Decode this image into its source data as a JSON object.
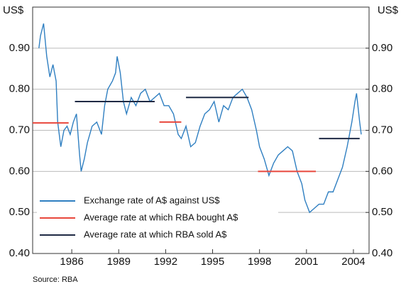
{
  "chart_data": {
    "type": "line",
    "ylabel": "US$",
    "y2label": "US$",
    "source": "Source: RBA",
    "xlim": [
      1983.5,
      2005
    ],
    "xticks": [
      1986,
      1989,
      1992,
      1995,
      1998,
      2001,
      2004
    ],
    "ylim": [
      0.4,
      1.0
    ],
    "yticks": [
      {
        "value": 0.4,
        "label": "0.40"
      },
      {
        "value": 0.5,
        "label": "0.50"
      },
      {
        "value": 0.6,
        "label": "0.60"
      },
      {
        "value": 0.7,
        "label": "0.70"
      },
      {
        "value": 0.8,
        "label": "0.80"
      },
      {
        "value": 0.9,
        "label": "0.90"
      }
    ],
    "y2lim": [
      0.4,
      1.0
    ],
    "y2ticks": [
      {
        "value": 0.4,
        "label": "0.40"
      },
      {
        "value": 0.5,
        "label": "0.50"
      },
      {
        "value": 0.6,
        "label": "0.60"
      },
      {
        "value": 0.7,
        "label": "0.70"
      },
      {
        "value": 0.8,
        "label": "0.80"
      },
      {
        "value": 0.9,
        "label": "0.90"
      }
    ],
    "grid": true,
    "legend": "lower left",
    "series": [
      {
        "name": "Exchange rate of A$ against US$",
        "color": "#2f7fc1",
        "x": [
          1983.9,
          1984.0,
          1984.2,
          1984.4,
          1984.6,
          1984.8,
          1985.0,
          1985.1,
          1985.3,
          1985.5,
          1985.7,
          1985.9,
          1986.1,
          1986.3,
          1986.5,
          1986.6,
          1986.8,
          1987.0,
          1987.3,
          1987.6,
          1987.9,
          1988.1,
          1988.3,
          1988.6,
          1988.8,
          1988.9,
          1989.1,
          1989.3,
          1989.5,
          1989.8,
          1990.1,
          1990.4,
          1990.7,
          1991.0,
          1991.3,
          1991.6,
          1991.9,
          1992.2,
          1992.5,
          1992.8,
          1993.0,
          1993.3,
          1993.6,
          1993.9,
          1994.2,
          1994.5,
          1994.8,
          1995.1,
          1995.4,
          1995.7,
          1996.0,
          1996.3,
          1996.6,
          1996.9,
          1997.2,
          1997.5,
          1997.8,
          1998.0,
          1998.3,
          1998.6,
          1998.9,
          1999.2,
          1999.5,
          1999.8,
          2000.1,
          2000.4,
          2000.7,
          2000.9,
          2001.2,
          2001.5,
          2001.8,
          2002.1,
          2002.4,
          2002.7,
          2003.0,
          2003.3,
          2003.6,
          2003.9,
          2004.1,
          2004.2,
          2004.4,
          2004.5
        ],
        "values": [
          0.9,
          0.93,
          0.96,
          0.88,
          0.83,
          0.86,
          0.82,
          0.72,
          0.66,
          0.7,
          0.71,
          0.69,
          0.72,
          0.74,
          0.64,
          0.6,
          0.63,
          0.67,
          0.71,
          0.72,
          0.69,
          0.76,
          0.8,
          0.82,
          0.84,
          0.88,
          0.84,
          0.77,
          0.74,
          0.78,
          0.76,
          0.79,
          0.8,
          0.77,
          0.78,
          0.79,
          0.76,
          0.76,
          0.74,
          0.69,
          0.68,
          0.71,
          0.66,
          0.67,
          0.71,
          0.74,
          0.75,
          0.77,
          0.72,
          0.76,
          0.75,
          0.78,
          0.79,
          0.8,
          0.78,
          0.75,
          0.7,
          0.66,
          0.63,
          0.59,
          0.62,
          0.64,
          0.65,
          0.66,
          0.65,
          0.6,
          0.57,
          0.53,
          0.5,
          0.51,
          0.52,
          0.52,
          0.55,
          0.55,
          0.58,
          0.61,
          0.66,
          0.72,
          0.77,
          0.79,
          0.72,
          0.69
        ]
      },
      {
        "name": "Average rate at which RBA bought A$",
        "color": "#e8473c",
        "segments": [
          {
            "start": 1983.5,
            "end": 1985.8,
            "value": 0.718
          },
          {
            "start": 1991.6,
            "end": 1993.0,
            "value": 0.72
          },
          {
            "start": 1997.9,
            "end": 2001.6,
            "value": 0.6
          }
        ]
      },
      {
        "name": "Average rate at which RBA sold A$",
        "color": "#1f2a44",
        "segments": [
          {
            "start": 1986.2,
            "end": 1991.3,
            "value": 0.77
          },
          {
            "start": 1993.3,
            "end": 1997.3,
            "value": 0.78
          },
          {
            "start": 2001.8,
            "end": 2004.4,
            "value": 0.68
          }
        ]
      }
    ]
  }
}
